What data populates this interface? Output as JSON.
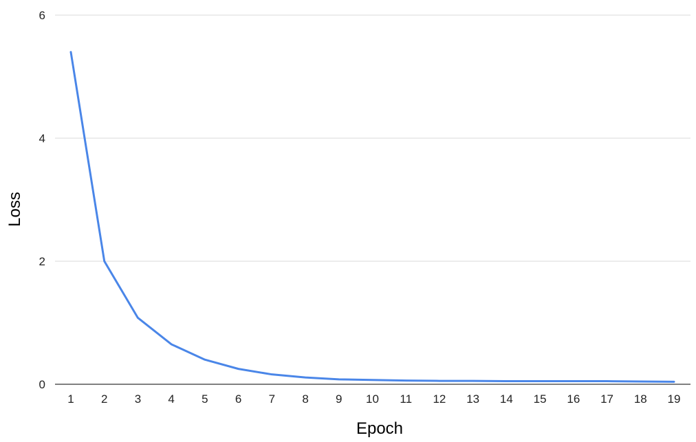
{
  "chart_data": {
    "type": "line",
    "title": "",
    "xlabel": "Epoch",
    "ylabel": "Loss",
    "x": [
      1,
      2,
      3,
      4,
      5,
      6,
      7,
      8,
      9,
      10,
      11,
      12,
      13,
      14,
      15,
      16,
      17,
      18,
      19
    ],
    "series": [
      {
        "values": [
          5.4,
          2.0,
          1.08,
          0.65,
          0.4,
          0.25,
          0.16,
          0.11,
          0.08,
          0.07,
          0.06,
          0.055,
          0.055,
          0.05,
          0.05,
          0.05,
          0.05,
          0.045,
          0.04
        ],
        "color": "#4a86e8"
      }
    ],
    "ylim": [
      0,
      6
    ],
    "yticks": [
      0,
      2,
      4,
      6
    ],
    "grid": true,
    "legend": "none"
  }
}
